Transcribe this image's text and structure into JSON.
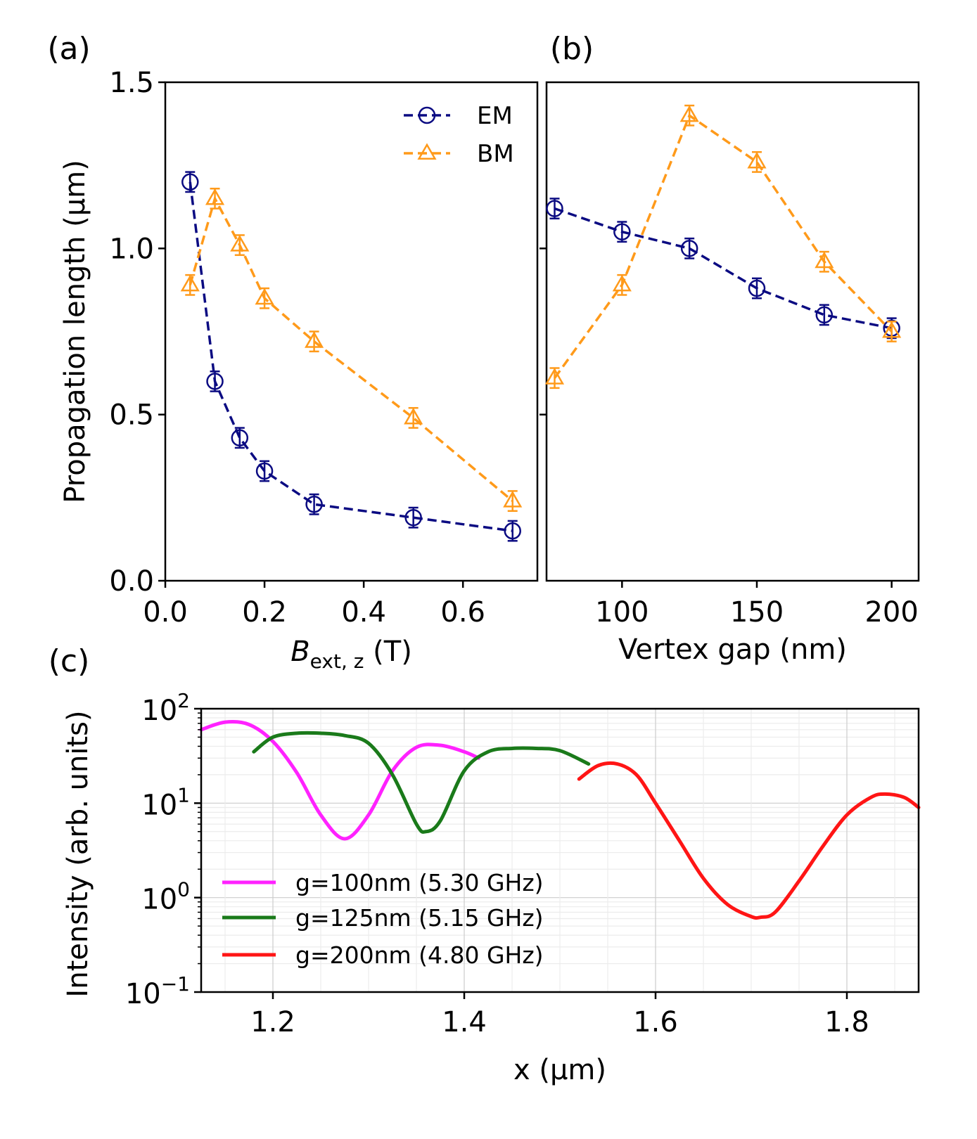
{
  "colors": {
    "em": "#0b0b82",
    "bm": "#ff9a1a",
    "g100": "#ff22ff",
    "g125": "#1a7a1a",
    "g200": "#ff1515"
  },
  "chart_data": [
    {
      "id": "a",
      "panel_label": "(a)",
      "type": "line",
      "xlabel_main": "B",
      "xlabel_sub": "ext, z",
      "xlabel_unit": " (T)",
      "ylabel": "Propagation length (μm)",
      "xlim": [
        0.0,
        0.75
      ],
      "ylim": [
        0.0,
        1.5
      ],
      "xticks": [
        0.0,
        0.2,
        0.4,
        0.6
      ],
      "xtick_labels": [
        "0.0",
        "0.2",
        "0.4",
        "0.6"
      ],
      "yticks": [
        0.0,
        0.5,
        1.0,
        1.5
      ],
      "ytick_labels": [
        "0.0",
        "0.5",
        "1.0",
        "1.5"
      ],
      "legend_position": "top-right",
      "series": [
        {
          "name": "EM",
          "marker": "circle",
          "color_key": "em",
          "x": [
            0.05,
            0.1,
            0.15,
            0.2,
            0.3,
            0.5,
            0.7
          ],
          "y": [
            1.2,
            0.6,
            0.43,
            0.33,
            0.23,
            0.19,
            0.15
          ],
          "err": 0.03
        },
        {
          "name": "BM",
          "marker": "triangle",
          "color_key": "bm",
          "x": [
            0.05,
            0.1,
            0.15,
            0.2,
            0.3,
            0.5,
            0.7
          ],
          "y": [
            0.89,
            1.15,
            1.01,
            0.85,
            0.72,
            0.49,
            0.24
          ],
          "err": 0.03
        }
      ]
    },
    {
      "id": "b",
      "panel_label": "(b)",
      "type": "line",
      "xlabel": "Vertex gap (nm)",
      "xlim": [
        72,
        210
      ],
      "ylim": [
        0.0,
        1.5
      ],
      "xticks": [
        100,
        150,
        200
      ],
      "xtick_labels": [
        "100",
        "150",
        "200"
      ],
      "yticks": [
        0.5,
        1.0
      ],
      "series": [
        {
          "name": "EM",
          "marker": "circle",
          "color_key": "em",
          "x": [
            75,
            100,
            125,
            150,
            175,
            200
          ],
          "y": [
            1.12,
            1.05,
            1.0,
            0.88,
            0.8,
            0.76
          ],
          "err": 0.03
        },
        {
          "name": "BM",
          "marker": "triangle",
          "color_key": "bm",
          "x": [
            75,
            100,
            125,
            150,
            175,
            200
          ],
          "y": [
            0.61,
            0.89,
            1.4,
            1.26,
            0.96,
            0.75
          ],
          "err": 0.03
        }
      ]
    },
    {
      "id": "c",
      "panel_label": "(c)",
      "type": "line",
      "yscale": "log",
      "xlabel": "x (μm)",
      "ylabel": "Intensity (arb. units)",
      "xlim": [
        1.125,
        1.875
      ],
      "ylim": [
        0.1,
        100
      ],
      "xticks": [
        1.2,
        1.4,
        1.6,
        1.8
      ],
      "xtick_labels": [
        "1.2",
        "1.4",
        "1.6",
        "1.8"
      ],
      "yticks": [
        0.1,
        1,
        10,
        100
      ],
      "ytick_base": [
        "10",
        "10",
        "10",
        "10"
      ],
      "ytick_exp": [
        "−1",
        "0",
        "1",
        "2"
      ],
      "grid": true,
      "legend_position": "lower-left",
      "series": [
        {
          "name": "g=100nm (5.30 GHz)",
          "color_key": "g100",
          "x": [
            1.125,
            1.15,
            1.175,
            1.2,
            1.225,
            1.25,
            1.275,
            1.3,
            1.325,
            1.35,
            1.375,
            1.4,
            1.415
          ],
          "y": [
            60,
            72,
            68,
            45,
            21,
            7.5,
            4.2,
            7.5,
            22,
            39,
            41,
            35,
            30
          ]
        },
        {
          "name": "g=125nm (5.15 GHz)",
          "color_key": "g125",
          "x": [
            1.18,
            1.2,
            1.225,
            1.25,
            1.275,
            1.3,
            1.325,
            1.35,
            1.36,
            1.375,
            1.4,
            1.425,
            1.45,
            1.475,
            1.5,
            1.53
          ],
          "y": [
            35,
            50,
            55,
            55,
            52,
            43,
            20,
            6.0,
            5.0,
            6.5,
            22,
            35,
            38,
            38,
            36,
            26
          ]
        },
        {
          "name": "g=200nm (4.80 GHz)",
          "color_key": "g200",
          "x": [
            1.52,
            1.54,
            1.56,
            1.58,
            1.6,
            1.625,
            1.65,
            1.675,
            1.7,
            1.71,
            1.725,
            1.75,
            1.775,
            1.8,
            1.825,
            1.84,
            1.86,
            1.875
          ],
          "y": [
            18,
            25,
            26,
            20,
            10,
            4.0,
            1.6,
            0.85,
            0.63,
            0.62,
            0.7,
            1.5,
            3.5,
            7.5,
            11.5,
            12.5,
            11.5,
            9
          ]
        }
      ]
    }
  ]
}
